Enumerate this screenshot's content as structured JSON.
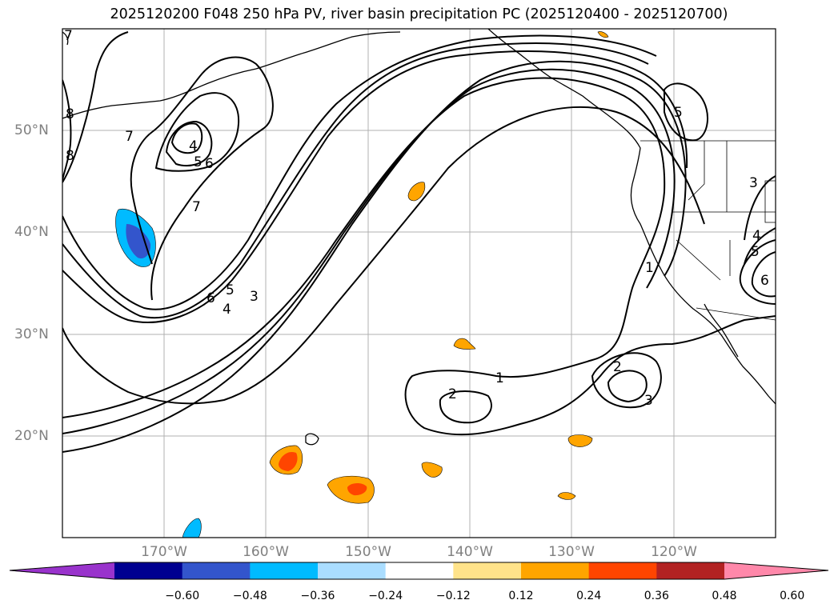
{
  "title": "2025120200 F048 250 hPa PV, river basin precipitation PC (2025120400 - 2025120700)",
  "lat_labels": [
    "50°N",
    "40°N",
    "30°N",
    "20°N"
  ],
  "lon_labels": [
    "170°W",
    "160°W",
    "150°W",
    "140°W",
    "130°W",
    "120°W"
  ],
  "contour_labels": [
    "1",
    "2",
    "3",
    "4",
    "5",
    "6",
    "7",
    "8"
  ],
  "colorbar": {
    "colors": [
      "#9933cc",
      "#000090",
      "#3355cc",
      "#00bbff",
      "#aaddff",
      "#ffffff",
      "#ffe38a",
      "#ffa500",
      "#ff4500",
      "#b22222",
      "#ff88aa"
    ],
    "ticks": [
      "−0.60",
      "−0.48",
      "−0.36",
      "−0.24",
      "−0.12",
      "0.12",
      "0.24",
      "0.36",
      "0.48",
      "0.60"
    ]
  }
}
